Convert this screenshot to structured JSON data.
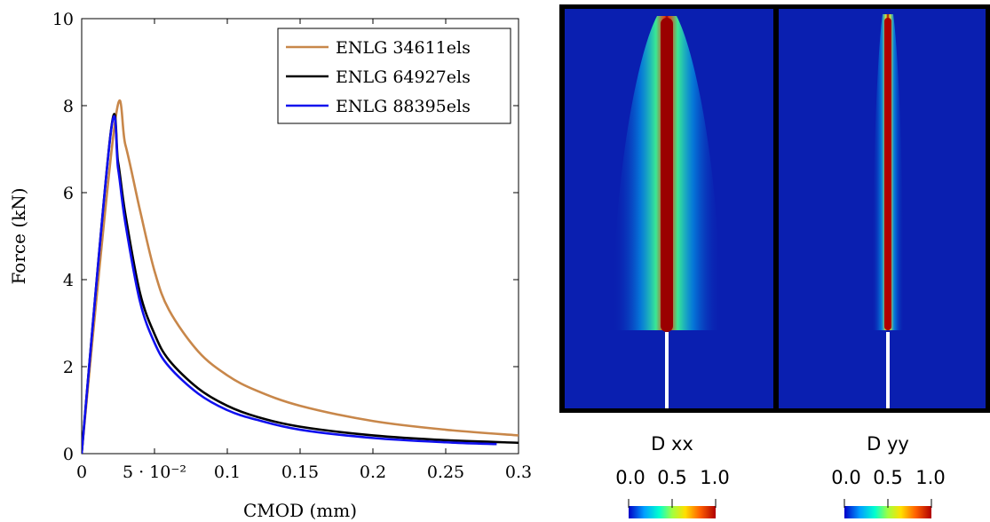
{
  "chart_data": {
    "type": "line",
    "xlabel": "CMOD  (mm)",
    "ylabel": "Force  (kN)",
    "xlim": [
      0,
      0.3
    ],
    "ylim": [
      0,
      10
    ],
    "xticks": [
      {
        "value": 0,
        "label": "0"
      },
      {
        "value": 0.05,
        "label": "5 · 10⁻²"
      },
      {
        "value": 0.1,
        "label": "0.1"
      },
      {
        "value": 0.15,
        "label": "0.15"
      },
      {
        "value": 0.2,
        "label": "0.2"
      },
      {
        "value": 0.25,
        "label": "0.25"
      },
      {
        "value": 0.3,
        "label": "0.3"
      }
    ],
    "yticks": [
      {
        "value": 0,
        "label": "0"
      },
      {
        "value": 2,
        "label": "2"
      },
      {
        "value": 4,
        "label": "4"
      },
      {
        "value": 6,
        "label": "6"
      },
      {
        "value": 8,
        "label": "8"
      },
      {
        "value": 10,
        "label": "10"
      }
    ],
    "legend_position": "top-right",
    "grid": false,
    "series": [
      {
        "name": "ENLG 34611els",
        "color": "#c8874a",
        "x": [
          0,
          0.023,
          0.03,
          0.04,
          0.05,
          0.06,
          0.08,
          0.1,
          0.12,
          0.15,
          0.2,
          0.25,
          0.3
        ],
        "y": [
          0,
          7.65,
          7.1,
          5.6,
          4.2,
          3.3,
          2.35,
          1.8,
          1.45,
          1.1,
          0.75,
          0.55,
          0.42
        ]
      },
      {
        "name": "ENLG 64927els",
        "color": "#000000",
        "x": [
          0,
          0.02,
          0.025,
          0.03,
          0.04,
          0.05,
          0.06,
          0.08,
          0.1,
          0.12,
          0.15,
          0.2,
          0.25,
          0.3
        ],
        "y": [
          0,
          7.4,
          6.7,
          5.5,
          3.7,
          2.75,
          2.15,
          1.5,
          1.1,
          0.85,
          0.62,
          0.42,
          0.31,
          0.25
        ]
      },
      {
        "name": "ENLG 88395els",
        "color": "#1010ee",
        "x": [
          0,
          0.02,
          0.025,
          0.03,
          0.04,
          0.05,
          0.06,
          0.08,
          0.1,
          0.12,
          0.15,
          0.2,
          0.25,
          0.285
        ],
        "y": [
          0,
          7.38,
          6.55,
          5.3,
          3.5,
          2.55,
          2.0,
          1.38,
          1.0,
          0.78,
          0.55,
          0.36,
          0.26,
          0.22
        ]
      }
    ]
  },
  "colorbars": [
    {
      "title": "D xx",
      "ticks": [
        "0.0",
        "0.5",
        "1.0"
      ]
    },
    {
      "title": "D yy",
      "ticks": [
        "0.0",
        "0.5",
        "1.0"
      ]
    }
  ],
  "colormap": [
    "#0000c8",
    "#00a0ff",
    "#00ffd0",
    "#a0ff40",
    "#ffe000",
    "#ff6000",
    "#b00000"
  ]
}
